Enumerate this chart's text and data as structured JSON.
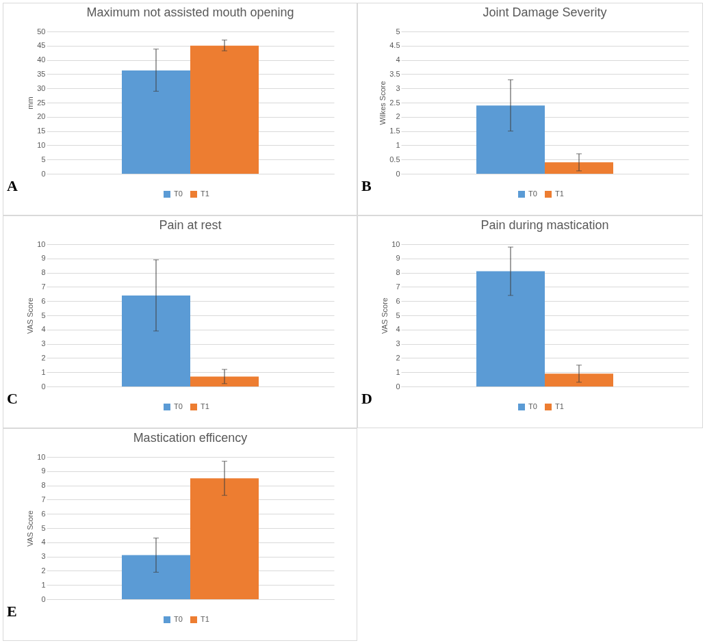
{
  "chart_data": [
    {
      "type": "bar",
      "title": "Maximum not assisted mouth opening",
      "ylabel": "mm",
      "categories": [
        null
      ],
      "series": [
        {
          "name": "T0",
          "color": "#5b9bd5",
          "values": [
            36.3
          ],
          "errors": [
            [
              29,
              43.8
            ]
          ]
        },
        {
          "name": "T1",
          "color": "#ed7d31",
          "values": [
            45
          ],
          "errors": [
            [
              43.2,
              47
            ]
          ]
        }
      ],
      "ylim": [
        0,
        50
      ],
      "yticks": [
        0,
        5,
        10,
        15,
        20,
        25,
        30,
        35,
        40,
        45,
        50
      ],
      "grid": "y",
      "legend": "bottom",
      "annotations": [
        "A"
      ]
    },
    {
      "type": "bar",
      "title": "Joint Damage Severity",
      "ylabel": "Wilkes Score",
      "categories": [
        null
      ],
      "series": [
        {
          "name": "T0",
          "color": "#5b9bd5",
          "values": [
            2.4
          ],
          "errors": [
            [
              1.5,
              3.3
            ]
          ]
        },
        {
          "name": "T1",
          "color": "#ed7d31",
          "values": [
            0.4
          ],
          "errors": [
            [
              0.1,
              0.7
            ]
          ]
        }
      ],
      "ylim": [
        0,
        5
      ],
      "yticks": [
        0,
        0.5,
        1,
        1.5,
        2,
        2.5,
        3,
        3.5,
        4,
        4.5,
        5
      ],
      "grid": "y",
      "legend": "bottom",
      "annotations": [
        "B"
      ]
    },
    {
      "type": "bar",
      "title": "Pain at rest",
      "ylabel": "VAS Score",
      "categories": [
        null
      ],
      "series": [
        {
          "name": "T0",
          "color": "#5b9bd5",
          "values": [
            6.4
          ],
          "errors": [
            [
              3.9,
              8.9
            ]
          ]
        },
        {
          "name": "T1",
          "color": "#ed7d31",
          "values": [
            0.7
          ],
          "errors": [
            [
              0.2,
              1.2
            ]
          ]
        }
      ],
      "ylim": [
        0,
        10
      ],
      "yticks": [
        0,
        1,
        2,
        3,
        4,
        5,
        6,
        7,
        8,
        9,
        10
      ],
      "grid": "y",
      "legend": "bottom",
      "annotations": [
        "C"
      ]
    },
    {
      "type": "bar",
      "title": "Pain during mastication",
      "ylabel": "VAS Score",
      "categories": [
        null
      ],
      "series": [
        {
          "name": "T0",
          "color": "#5b9bd5",
          "values": [
            8.1
          ],
          "errors": [
            [
              6.4,
              9.8
            ]
          ]
        },
        {
          "name": "T1",
          "color": "#ed7d31",
          "values": [
            0.9
          ],
          "errors": [
            [
              0.3,
              1.5
            ]
          ]
        }
      ],
      "ylim": [
        0,
        10
      ],
      "yticks": [
        0,
        1,
        2,
        3,
        4,
        5,
        6,
        7,
        8,
        9,
        10
      ],
      "grid": "y",
      "legend": "bottom",
      "annotations": [
        "D"
      ]
    },
    {
      "type": "bar",
      "title": "Mastication efficency",
      "ylabel": "VAS Score",
      "categories": [
        null
      ],
      "series": [
        {
          "name": "T0",
          "color": "#5b9bd5",
          "values": [
            3.1
          ],
          "errors": [
            [
              1.9,
              4.3
            ]
          ]
        },
        {
          "name": "T1",
          "color": "#ed7d31",
          "values": [
            8.5
          ],
          "errors": [
            [
              7.3,
              9.7
            ]
          ]
        }
      ],
      "ylim": [
        0,
        10
      ],
      "yticks": [
        0,
        1,
        2,
        3,
        4,
        5,
        6,
        7,
        8,
        9,
        10
      ],
      "grid": "y",
      "legend": "bottom",
      "annotations": [
        "E"
      ]
    }
  ]
}
